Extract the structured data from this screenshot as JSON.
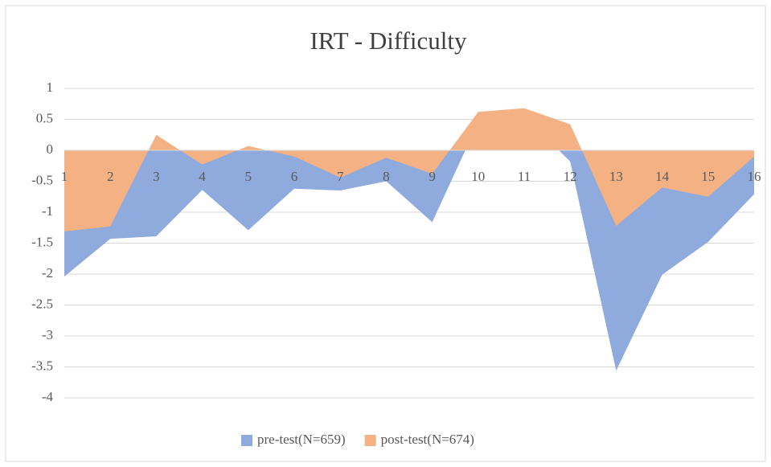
{
  "chart_data": {
    "type": "area",
    "title": "IRT - Difficulty",
    "categories": [
      "1",
      "2",
      "3",
      "4",
      "5",
      "6",
      "7",
      "8",
      "9",
      "10",
      "11",
      "12",
      "13",
      "14",
      "15",
      "16"
    ],
    "series": [
      {
        "name": "pre-test(N=659)",
        "color": "#8faadc",
        "values": [
          -2.04,
          -1.43,
          -1.39,
          -0.64,
          -1.29,
          -0.62,
          -0.65,
          -0.5,
          -1.16,
          0.45,
          0.55,
          -0.18,
          -3.56,
          -2.01,
          -1.48,
          -0.71
        ]
      },
      {
        "name": "post-test(N=674)",
        "color": "#f4b183",
        "values": [
          -1.31,
          -1.23,
          0.25,
          -0.23,
          0.07,
          -0.1,
          -0.44,
          -0.12,
          -0.38,
          0.62,
          0.68,
          0.42,
          -1.22,
          -0.6,
          -0.75,
          -0.1
        ]
      }
    ],
    "ylim": [
      -4,
      1
    ],
    "yticks": [
      -4,
      -3.5,
      -3,
      -2.5,
      -2,
      -1.5,
      -1,
      -0.5,
      0,
      0.5,
      1
    ],
    "grid": true,
    "legend": "bottom"
  }
}
